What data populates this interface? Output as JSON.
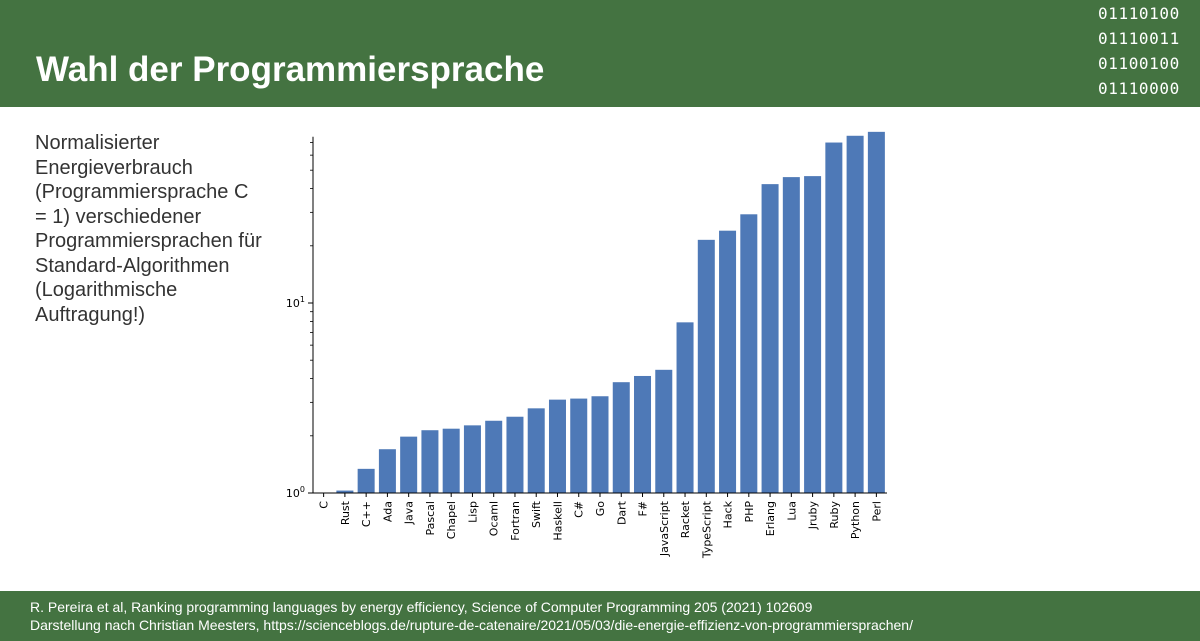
{
  "slide": {
    "title": "Wahl der Programmiersprache",
    "description": "Normalisierter Energieverbrauch (Programmiersprache C = 1) verschiedener Programmiersprachen für Standard-Algorithmen (Logarithmische Auftragung!)",
    "binary_lines": [
      "01110100",
      "01110011",
      "01100100",
      "01110000"
    ],
    "colors": {
      "header": "#447341",
      "bar": "#4e79b7",
      "text": "#333333"
    }
  },
  "footer": {
    "line1": "R. Pereira et al, Ranking programming languages by energy efficiency, Science of Computer Programming 205 (2021) 102609",
    "line2": "Darstellung nach Christian Meesters, https://scienceblogs.de/rupture-de-catenaire/2021/05/03/die-energie-effizienz-von-programmiersprachen/"
  },
  "chart_data": {
    "type": "bar",
    "yscale": "log",
    "ylim": [
      1,
      75
    ],
    "yticks": [
      {
        "value": 1,
        "base": "10",
        "exp": "0"
      },
      {
        "value": 10,
        "base": "10",
        "exp": "1"
      }
    ],
    "categories": [
      "C",
      "Rust",
      "C++",
      "Ada",
      "Java",
      "Pascal",
      "Chapel",
      "Lisp",
      "Ocaml",
      "Fortran",
      "Swift",
      "Haskell",
      "C#",
      "Go",
      "Dart",
      "F#",
      "JavaScript",
      "Racket",
      "TypeScript",
      "Hack",
      "PHP",
      "Erlang",
      "Lua",
      "Jruby",
      "Ruby",
      "Python",
      "Perl"
    ],
    "values": [
      1.0,
      1.03,
      1.34,
      1.7,
      1.98,
      2.14,
      2.18,
      2.27,
      2.4,
      2.52,
      2.79,
      3.1,
      3.14,
      3.23,
      3.83,
      4.13,
      4.45,
      7.91,
      21.5,
      24.02,
      29.3,
      42.23,
      45.98,
      46.54,
      69.91,
      75.88,
      79.58
    ],
    "title": "",
    "xlabel": "",
    "ylabel": ""
  }
}
